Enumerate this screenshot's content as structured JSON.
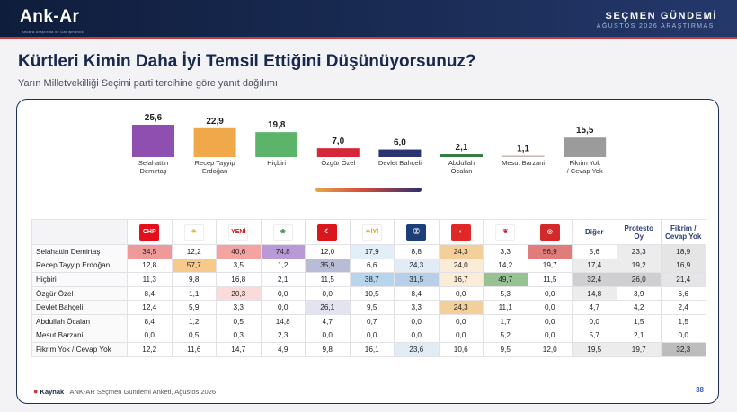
{
  "header": {
    "logo": "Ank-Ar",
    "logo_sub": "Ankara Araştırma ve Danışmanlık",
    "survey_name": "SEÇMEN GÜNDEMİ",
    "survey_date": "AĞUSTOS 2026 ARAŞTIRMASI"
  },
  "title": "Kürtleri Kimin Daha İyi Temsil Ettiğini Düşünüyorsunuz?",
  "subtitle": "Yarın Milletvekilliği Seçimi parti tercihine göre yanıt dağılımı",
  "chart_data": {
    "type": "bar",
    "categories": [
      "Selahattin Demirtaş",
      "Recep Tayyip Erdoğan",
      "Hiçbiri",
      "Özgür Özel",
      "Devlet Bahçeli",
      "Abdullah Öcalan",
      "Mesut Barzani",
      "Fikrim Yok / Cevap Yok"
    ],
    "category_lines": [
      [
        "Selahattin",
        "Demirtaş"
      ],
      [
        "Recep Tayyip",
        "Erdoğan"
      ],
      [
        "Hiçbiri"
      ],
      [
        "Özgür Özel"
      ],
      [
        "Devlet Bahçeli"
      ],
      [
        "Abdullah",
        "Öcalan"
      ],
      [
        "Mesut Barzani"
      ],
      [
        "Fikrim Yok",
        "/ Cevap Yok"
      ]
    ],
    "values": [
      25.6,
      22.9,
      19.8,
      7.0,
      6.0,
      2.1,
      1.1,
      15.5
    ],
    "value_labels": [
      "25,6",
      "22,9",
      "19,8",
      "7,0",
      "6,0",
      "2,1",
      "1,1",
      "15,5"
    ],
    "colors": [
      "#8e4fb0",
      "#efa84a",
      "#5cb46b",
      "#d6263a",
      "#2a3470",
      "#2e7d3e",
      "#c9b8b0",
      "#9b9b9b"
    ],
    "title": "",
    "xlabel": "",
    "ylabel": ""
  },
  "table": {
    "party_columns": [
      {
        "name": "CHP",
        "text": "CHP",
        "color": "#e3101c",
        "fg": "#fff"
      },
      {
        "name": "AK Parti",
        "text": "☀",
        "color": "#ffffff",
        "fg": "#f2a900"
      },
      {
        "name": "Yeniden Refah",
        "text": "YENİ",
        "color": "#ffffff",
        "fg": "#d21c1c"
      },
      {
        "name": "DEM Parti",
        "text": "❀",
        "color": "#ffffff",
        "fg": "#3b8a3e"
      },
      {
        "name": "MHP",
        "text": "☾",
        "color": "#d8161c",
        "fg": "#fff"
      },
      {
        "name": "İYİ Parti",
        "text": "☀İYİ",
        "color": "#ffffff",
        "fg": "#e6a500"
      },
      {
        "name": "Zafer Partisi",
        "text": "Ⓩ",
        "color": "#1c3f7a",
        "fg": "#fff"
      },
      {
        "name": "Saadet/Yeniden",
        "text": "◐",
        "color": "#e02828",
        "fg": "#fff"
      },
      {
        "name": "TİP",
        "text": "❦",
        "color": "#ffffff",
        "fg": "#c0152a"
      },
      {
        "name": "Diğer Parti",
        "text": "◎",
        "color": "#d22a2a",
        "fg": "#fff"
      }
    ],
    "extra_columns": [
      "Diğer",
      "Protesto Oy",
      "Fikrim / Cevap Yok"
    ],
    "extra_columns_lines": [
      [
        "Diğer"
      ],
      [
        "Protesto",
        "Oy"
      ],
      [
        "Fikrim /",
        "Cevap Yok"
      ]
    ],
    "rows": [
      {
        "label": "Selahattin Demirtaş",
        "cells": [
          "34,5",
          "12,2",
          "40,6",
          "74,8",
          "12,0",
          "17,9",
          "8,8",
          "24,3",
          "3,3",
          "56,9",
          "5,6",
          "23,3",
          "18,9"
        ]
      },
      {
        "label": "Recep Tayyip Erdoğan",
        "cells": [
          "12,8",
          "57,7",
          "3,5",
          "1,2",
          "35,9",
          "6,6",
          "24,3",
          "24,0",
          "14,2",
          "19,7",
          "17,4",
          "19,2",
          "16,9"
        ]
      },
      {
        "label": "Hiçbiri",
        "cells": [
          "11,3",
          "9,8",
          "16,8",
          "2,1",
          "11,5",
          "38,7",
          "31,5",
          "16,7",
          "49,7",
          "11,5",
          "32,4",
          "26,0",
          "21,4"
        ]
      },
      {
        "label": "Özgür Özel",
        "cells": [
          "8,4",
          "1,1",
          "20,3",
          "0,0",
          "0,0",
          "10,5",
          "8,4",
          "0,0",
          "5,3",
          "0,0",
          "14,8",
          "3,9",
          "6,6"
        ]
      },
      {
        "label": "Devlet Bahçeli",
        "cells": [
          "12,4",
          "5,9",
          "3,3",
          "0,0",
          "26,1",
          "9,5",
          "3,3",
          "24,3",
          "11,1",
          "0,0",
          "4,7",
          "4,2",
          "2,4"
        ]
      },
      {
        "label": "Abdullah Öcalan",
        "cells": [
          "8,4",
          "1,2",
          "0,5",
          "14,8",
          "4,7",
          "0,7",
          "0,0",
          "0,0",
          "1,7",
          "0,0",
          "0,0",
          "1,5",
          "1,5"
        ]
      },
      {
        "label": "Mesut Barzani",
        "cells": [
          "0,0",
          "0,5",
          "0,3",
          "2,3",
          "0,0",
          "0,0",
          "0,0",
          "0,0",
          "5,2",
          "0,0",
          "5,7",
          "2,1",
          "0,0"
        ]
      },
      {
        "label": "Fikrim Yok / Cevap Yok",
        "cells": [
          "12,2",
          "11,6",
          "14,7",
          "4,9",
          "9,8",
          "16,1",
          "23,6",
          "10,6",
          "9,5",
          "12,0",
          "19,5",
          "19,7",
          "32,3"
        ]
      }
    ],
    "highlight_colors": {
      "c0": "#ef9a9a",
      "c1": "#f7c98a",
      "c2": "#f4a3a3",
      "c3": "#b99ad6",
      "c4": "#b9bcd6",
      "c5": "#b7d6ee",
      "c6": "#b7cfe9",
      "c7": "#f3cf9c",
      "c8": "#97c293",
      "c9": "#e07c7c",
      "c10": "#cfcfcf",
      "c11": "#cfcfcf",
      "c12": "#bdbdbd"
    }
  },
  "footer": {
    "source_label": "Kaynak",
    "source_text": "· ANK-AR Seçmen Gündemi Anketi, Ağustos 2026",
    "page_number": "38"
  }
}
